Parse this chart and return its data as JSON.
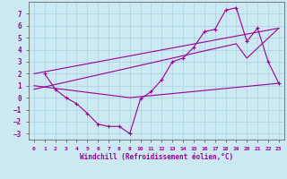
{
  "xlabel": "Windchill (Refroidissement éolien,°C)",
  "background_color": "#cce8f0",
  "grid_color": "#b0d8e8",
  "line_color": "#990099",
  "xlim": [
    -0.5,
    23.5
  ],
  "ylim": [
    -3.5,
    8.0
  ],
  "xticks": [
    0,
    1,
    2,
    3,
    4,
    5,
    6,
    7,
    8,
    9,
    10,
    11,
    12,
    13,
    14,
    15,
    16,
    17,
    18,
    19,
    20,
    21,
    22,
    23
  ],
  "yticks": [
    -3,
    -2,
    -1,
    0,
    1,
    2,
    3,
    4,
    5,
    6,
    7
  ],
  "line1_x": [
    1,
    2,
    3,
    4,
    5,
    6,
    7,
    8,
    9,
    10,
    11,
    12,
    13,
    14,
    15,
    16,
    17,
    18,
    19,
    20,
    21,
    22,
    23
  ],
  "line1_y": [
    2.0,
    0.7,
    0.0,
    -0.5,
    -1.3,
    -2.2,
    -2.4,
    -2.4,
    -3.0,
    -0.1,
    0.5,
    1.5,
    3.0,
    3.3,
    4.2,
    5.5,
    5.7,
    7.3,
    7.5,
    4.7,
    5.8,
    3.0,
    1.2
  ],
  "line2_x": [
    0,
    23
  ],
  "line2_y": [
    2.0,
    5.8
  ],
  "line3_x": [
    0,
    9,
    23
  ],
  "line3_y": [
    1.0,
    0.0,
    1.2
  ],
  "line4_x": [
    0,
    19,
    20,
    23
  ],
  "line4_y": [
    0.7,
    4.5,
    3.3,
    5.8
  ]
}
